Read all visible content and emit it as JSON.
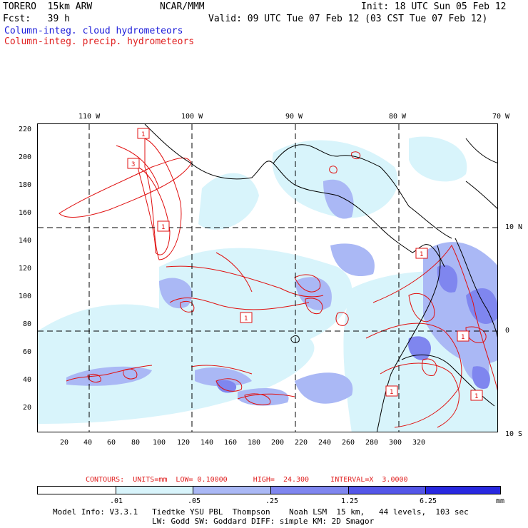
{
  "header": {
    "model": "TORERO  15km ARW",
    "org": "NCAR/MMM",
    "init": "Init: 18 UTC Sun 05 Feb 12",
    "fcst": "Fcst:   39 h",
    "valid": "Valid: 09 UTC Tue 07 Feb 12 (03 CST Tue 07 Feb 12)",
    "field1": "Column-integ. cloud hydrometeors",
    "field2": "Column-integ. precip. hydrometeors"
  },
  "colors": {
    "field1": "#1a1ad9",
    "field2": "#e02020",
    "coast": "#000000",
    "contour": "#e01010"
  },
  "axes": {
    "top_lon": [
      "110 W",
      "100 W",
      "90 W",
      "80 W",
      "70 W"
    ],
    "left_y": [
      "220",
      "200",
      "180",
      "160",
      "140",
      "120",
      "100",
      "80",
      "60",
      "40",
      "20"
    ],
    "bottom_x": [
      "20",
      "40",
      "60",
      "80",
      "100",
      "120",
      "140",
      "160",
      "180",
      "200",
      "220",
      "240",
      "260",
      "280",
      "300",
      "320"
    ],
    "right_lat": [
      "10 N",
      "0",
      "10 S"
    ]
  },
  "boxes": [
    "1",
    "3",
    "1",
    "1",
    "1",
    "1",
    "1",
    "1"
  ],
  "footer": {
    "contours": "CONTOURS:  UNITS=mm  LOW= 0.10000      HIGH=  24.300     INTERVAL=X  3.0000",
    "colorbar_labels": [
      ".01",
      ".05",
      ".25",
      "1.25",
      "6.25"
    ],
    "colorbar_unit": "mm",
    "colorbar_colors": [
      "#ffffff",
      "#d8f4fb",
      "#aab8f5",
      "#7f86ef",
      "#5456e8",
      "#2828e0"
    ],
    "model_info1": "Model Info: V3.3.1   Tiedtke YSU PBL  Thompson    Noah LSM  15 km,   44 levels,  103 sec",
    "model_info2": "LW: Godd SW: Goddard DIFF: simple KM: 2D Smagor"
  }
}
